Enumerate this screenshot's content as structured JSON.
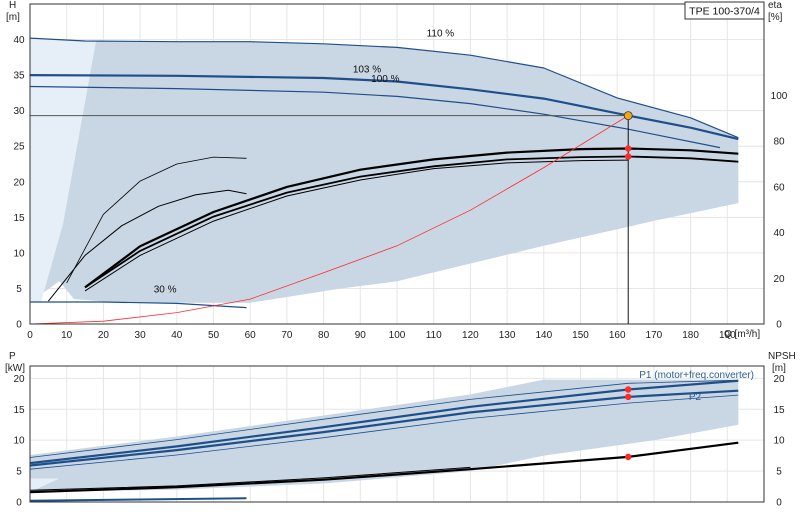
{
  "title_box": "TPE 100-370/4",
  "colors": {
    "band": "#c9d6e4",
    "band_light": "#e6eef7",
    "blue": "#1f4f8a",
    "blue_thin": "#2c5f95",
    "red": "#ff2a2a",
    "black": "#000000",
    "grid": "#e6e6e6",
    "op_point": "#f2a618"
  },
  "chart_data": [
    {
      "type": "line",
      "id": "pump_curve",
      "x_axis": {
        "label": "Q [m³/h]",
        "range": [
          0,
          200
        ],
        "ticks": [
          0,
          10,
          20,
          30,
          40,
          50,
          60,
          70,
          80,
          90,
          100,
          110,
          120,
          130,
          140,
          150,
          160,
          170,
          180,
          190
        ]
      },
      "y_left": {
        "label": "H",
        "unit": "[m]",
        "range": [
          0,
          45
        ],
        "ticks": [
          0,
          5,
          10,
          15,
          20,
          25,
          30,
          35,
          40
        ]
      },
      "y_right": {
        "label": "eta",
        "unit": "[%]",
        "range": [
          0,
          140
        ],
        "ticks": [
          0,
          20,
          40,
          60,
          80,
          100
        ]
      },
      "grid": true,
      "series": [
        {
          "name": "110 %",
          "role": "H",
          "width": 1.2,
          "points": [
            [
              0,
              40.2
            ],
            [
              15,
              39.8
            ],
            [
              40,
              39.7
            ],
            [
              60,
              39.7
            ],
            [
              80,
              39.4
            ],
            [
              100,
              38.9
            ],
            [
              120,
              37.8
            ],
            [
              140,
              36.0
            ],
            [
              160,
              31.8
            ],
            [
              180,
              29.0
            ],
            [
              193,
              26.2
            ]
          ]
        },
        {
          "name": "103 %",
          "role": "H",
          "width": 2.2,
          "points": [
            [
              0,
              35.0
            ],
            [
              40,
              34.9
            ],
            [
              80,
              34.6
            ],
            [
              100,
              34.1
            ],
            [
              120,
              33.0
            ],
            [
              140,
              31.7
            ],
            [
              163,
              29.3
            ],
            [
              180,
              27.6
            ],
            [
              193,
              26.0
            ]
          ]
        },
        {
          "name": "100 %",
          "role": "H",
          "width": 1.2,
          "points": [
            [
              0,
              33.4
            ],
            [
              40,
              33.1
            ],
            [
              80,
              32.6
            ],
            [
              100,
              32.0
            ],
            [
              120,
              31.0
            ],
            [
              140,
              29.5
            ],
            [
              163,
              27.4
            ],
            [
              188,
              24.8
            ]
          ]
        },
        {
          "name": "30 %",
          "role": "H",
          "width": 1.2,
          "points": [
            [
              0,
              3.1
            ],
            [
              20,
              3.1
            ],
            [
              40,
              2.9
            ],
            [
              59,
              2.3
            ]
          ]
        },
        {
          "role": "eta",
          "width": 2.2,
          "points": [
            [
              15,
              16
            ],
            [
              30,
              34
            ],
            [
              50,
              49
            ],
            [
              70,
              60
            ],
            [
              90,
              67.5
            ],
            [
              110,
              72
            ],
            [
              130,
              75
            ],
            [
              150,
              76.5
            ],
            [
              163,
              76.8
            ],
            [
              180,
              76
            ],
            [
              193,
              74.5
            ]
          ]
        },
        {
          "role": "eta",
          "width": 1.8,
          "points": [
            [
              15,
              16
            ],
            [
              30,
              32
            ],
            [
              50,
              47
            ],
            [
              70,
              57.5
            ],
            [
              90,
              64.5
            ],
            [
              110,
              69
            ],
            [
              130,
              72
            ],
            [
              150,
              73
            ],
            [
              163,
              73.3
            ],
            [
              180,
              72.5
            ],
            [
              193,
              71
            ]
          ]
        },
        {
          "role": "eta",
          "width": 1.0,
          "points": [
            [
              15,
              14.5
            ],
            [
              30,
              30
            ],
            [
              50,
              45
            ],
            [
              70,
              56
            ],
            [
              90,
              63
            ],
            [
              110,
              68
            ],
            [
              130,
              70.5
            ],
            [
              150,
              71.5
            ],
            [
              163,
              71.7
            ]
          ]
        },
        {
          "role": "eta",
          "width": 1.0,
          "points": [
            [
              5,
              10
            ],
            [
              15,
              30
            ],
            [
              25,
              43
            ],
            [
              35,
              51.5
            ],
            [
              45,
              56.5
            ],
            [
              54,
              58.5
            ],
            [
              59,
              57
            ]
          ]
        },
        {
          "role": "eta",
          "width": 0.8,
          "points": [
            [
              10,
              18
            ],
            [
              20,
              48
            ],
            [
              30,
              62.5
            ],
            [
              40,
              70
            ],
            [
              50,
              73
            ],
            [
              59,
              72.5
            ]
          ]
        },
        {
          "role": "system",
          "width": 0.8,
          "points": [
            [
              0,
              0
            ],
            [
              20,
              0.4
            ],
            [
              40,
              1.6
            ],
            [
              60,
              3.5
            ],
            [
              80,
              7.2
            ],
            [
              100,
              11.0
            ],
            [
              120,
              16.0
            ],
            [
              140,
              22.0
            ],
            [
              163,
              29.3
            ]
          ]
        }
      ],
      "operating_point": {
        "q": 163,
        "h": 29.3
      },
      "eta_markers": [
        {
          "q": 163,
          "eta": 76.8
        },
        {
          "q": 163,
          "eta": 73.3
        }
      ]
    },
    {
      "type": "line",
      "id": "power_curve",
      "x_axis": {
        "range": [
          0,
          200
        ]
      },
      "y_left": {
        "label": "P",
        "unit": "[kW]",
        "range": [
          0,
          22
        ],
        "ticks": [
          0,
          5,
          10,
          15,
          20
        ]
      },
      "y_right": {
        "label": "NPSH",
        "unit": "[m]",
        "range": [
          0,
          22
        ],
        "ticks": [
          0,
          5,
          10,
          15,
          20
        ]
      },
      "grid": true,
      "series": [
        {
          "name": "P1 (motor+freq.converter)",
          "role": "P1",
          "width": 2.2,
          "points": [
            [
              0,
              6.3
            ],
            [
              40,
              9.0
            ],
            [
              80,
              12.1
            ],
            [
              120,
              15.4
            ],
            [
              163,
              18.2
            ],
            [
              193,
              19.6
            ]
          ]
        },
        {
          "name": "P2",
          "role": "P2",
          "width": 2.2,
          "points": [
            [
              0,
              5.9
            ],
            [
              40,
              8.4
            ],
            [
              80,
              11.3
            ],
            [
              120,
              14.5
            ],
            [
              163,
              17.0
            ],
            [
              193,
              18.0
            ]
          ]
        },
        {
          "role": "P1",
          "width": 0.8,
          "points": [
            [
              0,
              7.2
            ],
            [
              40,
              10.1
            ],
            [
              80,
              13.4
            ],
            [
              120,
              16.6
            ],
            [
              163,
              19.2
            ],
            [
              193,
              19.7
            ]
          ]
        },
        {
          "role": "P2",
          "width": 0.8,
          "points": [
            [
              0,
              5.3
            ],
            [
              40,
              7.6
            ],
            [
              80,
              10.4
            ],
            [
              120,
              13.5
            ],
            [
              163,
              16.0
            ],
            [
              193,
              17.3
            ]
          ]
        },
        {
          "role": "NPSH",
          "width": 2.2,
          "points": [
            [
              0,
              1.6
            ],
            [
              40,
              2.4
            ],
            [
              80,
              3.6
            ],
            [
              120,
              5.3
            ],
            [
              163,
              7.3
            ],
            [
              193,
              9.6
            ]
          ]
        },
        {
          "role": "NPSH",
          "width": 1.0,
          "points": [
            [
              0,
              1.9
            ],
            [
              40,
              2.6
            ],
            [
              80,
              3.9
            ],
            [
              120,
              5.6
            ]
          ]
        },
        {
          "role": "P",
          "width": 2.0,
          "points": [
            [
              0,
              0.2
            ],
            [
              30,
              0.4
            ],
            [
              59,
              0.6
            ]
          ]
        }
      ],
      "markers": [
        {
          "q": 163,
          "v": 18.2
        },
        {
          "q": 163,
          "v": 17.0
        },
        {
          "q": 163,
          "v": 7.3
        }
      ]
    }
  ]
}
